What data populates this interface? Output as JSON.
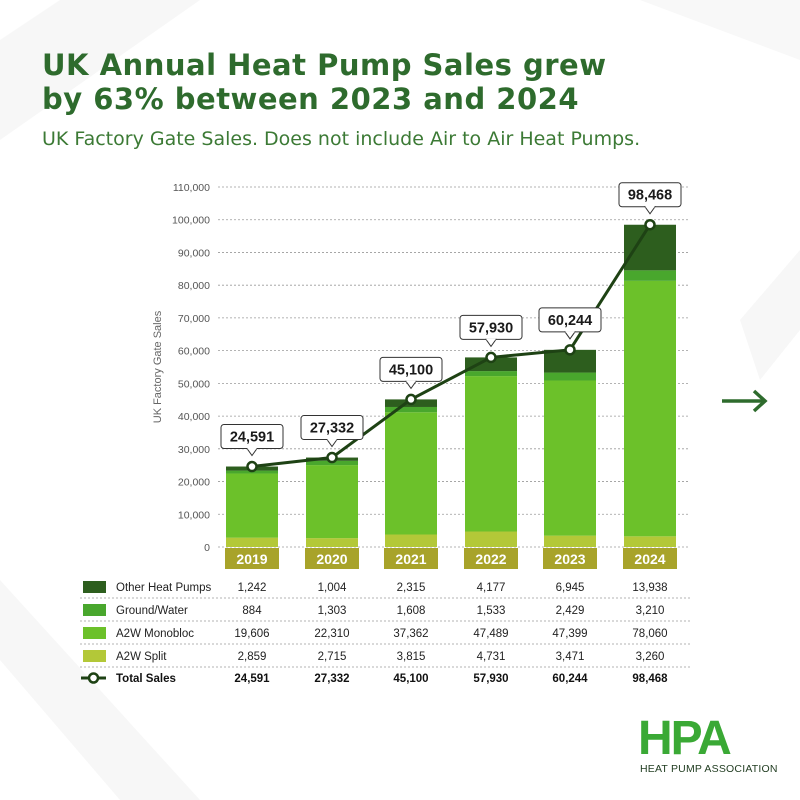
{
  "title_line1": "UK Annual Heat Pump Sales grew",
  "title_line2": "by 63% between 2023 and 2024",
  "subtitle": "UK Factory Gate Sales. Does not include Air to Air Heat Pumps.",
  "logo": {
    "text": "HPA",
    "subtitle": "HEAT PUMP ASSOCIATION"
  },
  "next_icon": "arrow-right-icon",
  "colors": {
    "title": "#2e6b2d",
    "other": "#2d5e1e",
    "ground": "#49a72d",
    "monobloc": "#6cc12a",
    "split": "#b3c838",
    "total_line": "#1e4214"
  },
  "chart_data": {
    "type": "bar",
    "stacked": true,
    "ylabel": "UK Factory Gate Sales",
    "ylim": [
      0,
      110000
    ],
    "yticks": [
      0,
      10000,
      20000,
      30000,
      40000,
      50000,
      60000,
      70000,
      80000,
      90000,
      100000,
      110000
    ],
    "ytick_labels": [
      "0",
      "10,000",
      "20,000",
      "30,000",
      "40,000",
      "50,000",
      "60,000",
      "70,000",
      "80,000",
      "90,000",
      "100,000",
      "110,000"
    ],
    "grid": true,
    "categories": [
      "2019",
      "2020",
      "2021",
      "2022",
      "2023",
      "2024"
    ],
    "series": [
      {
        "name": "Other Heat Pumps",
        "key": "other",
        "values": [
          1242,
          1004,
          2315,
          4177,
          6945,
          13938
        ],
        "labels": [
          "1,242",
          "1,004",
          "2,315",
          "4,177",
          "6,945",
          "13,938"
        ]
      },
      {
        "name": "Ground/Water",
        "key": "ground",
        "values": [
          884,
          1303,
          1608,
          1533,
          2429,
          3210
        ],
        "labels": [
          "884",
          "1,303",
          "1,608",
          "1,533",
          "2,429",
          "3,210"
        ]
      },
      {
        "name": "A2W Monobloc",
        "key": "monobloc",
        "values": [
          19606,
          22310,
          37362,
          47489,
          47399,
          78060
        ],
        "labels": [
          "19,606",
          "22,310",
          "37,362",
          "47,489",
          "47,399",
          "78,060"
        ]
      },
      {
        "name": "A2W Split",
        "key": "split",
        "values": [
          2859,
          2715,
          3815,
          4731,
          3471,
          3260
        ],
        "labels": [
          "2,859",
          "2,715",
          "3,815",
          "4,731",
          "3,471",
          "3,260"
        ]
      }
    ],
    "total": {
      "name": "Total Sales",
      "values": [
        24591,
        27332,
        45100,
        57930,
        60244,
        98468
      ],
      "labels": [
        "24,591",
        "27,332",
        "45,100",
        "57,930",
        "60,244",
        "98,468"
      ]
    },
    "legend": "table-below"
  }
}
